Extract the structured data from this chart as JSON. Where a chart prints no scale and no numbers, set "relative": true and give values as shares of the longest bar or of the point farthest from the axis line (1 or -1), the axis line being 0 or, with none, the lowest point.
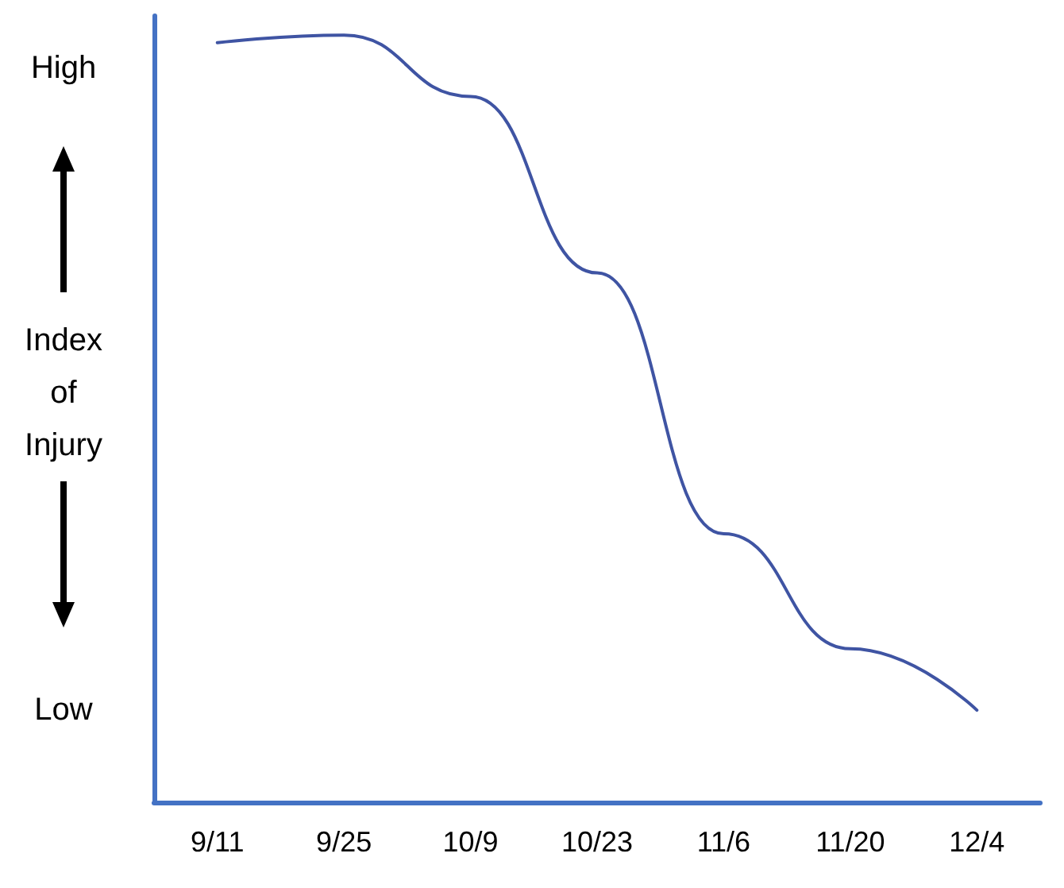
{
  "chart_data": {
    "type": "line",
    "ylabel": "Index\nof\nInjury",
    "relative": true,
    "annotations": [
      "High",
      "Low"
    ],
    "categories": [
      "9/11",
      "9/25",
      "10/9",
      "10/23",
      "11/6",
      "11/20",
      "12/4"
    ],
    "series": [
      {
        "color": "#3f54a3",
        "values": [
          0.99,
          1,
          0.92,
          0.69,
          0.35,
          0.2,
          0.12
        ]
      }
    ],
    "grid": false,
    "marker": "none",
    "line_style": "solid"
  }
}
